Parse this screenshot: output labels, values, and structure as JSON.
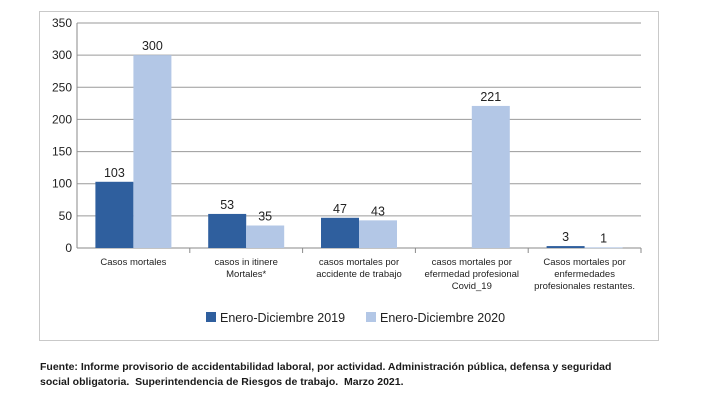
{
  "chart_data": {
    "type": "bar",
    "categories": [
      [
        "Casos mortales"
      ],
      [
        "casos in itinere",
        "Mortales*"
      ],
      [
        "casos mortales por",
        "accidente de trabajo"
      ],
      [
        "casos mortales por",
        "efermedad profesional",
        "Covid_19"
      ],
      [
        "Casos mortales por",
        "enfermedades",
        "profesionales restantes."
      ]
    ],
    "series": [
      {
        "name": "Enero-Diciembre 2019",
        "values": [
          103,
          53,
          47,
          null,
          3
        ],
        "labels": [
          "103",
          "53",
          "47",
          "",
          "3"
        ]
      },
      {
        "name": "Enero-Diciembre 2020",
        "values": [
          300,
          35,
          43,
          221,
          1
        ],
        "labels": [
          "300",
          "35",
          "43",
          "221",
          "1"
        ]
      }
    ],
    "ylim": [
      0,
      350
    ],
    "yticks": [
      0,
      50,
      100,
      150,
      200,
      250,
      300,
      350
    ],
    "grid": true,
    "legend_position": "bottom",
    "colors": {
      "series_2019": "#2f5f9e",
      "series_2020": "#b3c7e6",
      "grid": "#9a9a9a",
      "axis_text": "#222222"
    }
  },
  "source_note": {
    "line1": "Fuente: Informe provisorio de accidentabilidad laboral, por actividad. Administración pública, defensa y seguridad",
    "line2": "social obligatoria.  Superintendencia de Riesgos de trabajo.  Marzo 2021."
  }
}
